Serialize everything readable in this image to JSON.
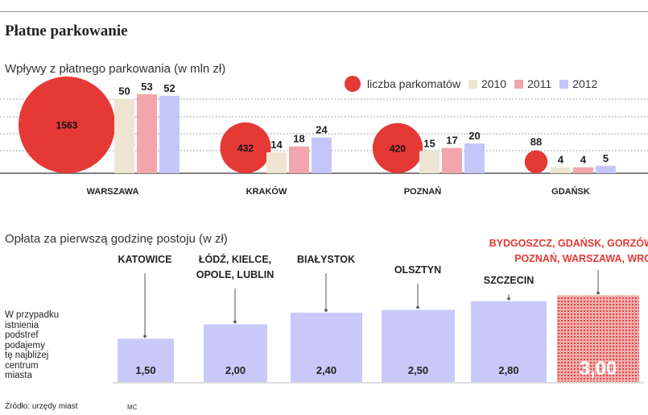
{
  "header": {
    "title": "Płatne parkowanie"
  },
  "revenue": {
    "subtitle": "Wpływy z płatnego parkowania (w mln zł)"
  },
  "fees": {
    "subtitle": "Opłata za pierwszą godzinę postoju (w zł)"
  },
  "legend": {
    "meters": "liczba parkomatów",
    "y2010": "2010",
    "y2011": "2011",
    "y2012": "2012"
  },
  "note": [
    "W przypadku",
    "istnienia",
    "podstref",
    "podajemy",
    "tę najbliżej",
    "centrum",
    "miasta"
  ],
  "footer": {
    "source": "Źródło: urzędy miast",
    "author": "MC"
  },
  "colors": {
    "c2010": "#efe4d1",
    "c2011": "#f2a6ac",
    "c2012": "#c4c6fa",
    "meters": "#e53935",
    "fee": "#c9c9f9",
    "accent": "#e53935"
  },
  "chart_data": [
    {
      "type": "bar",
      "title": "Wpływy z płatnego parkowania (w mln zł)",
      "categories": [
        "WARSZAWA",
        "KRAKÓW",
        "POZNAŃ",
        "GDAŃSK"
      ],
      "series": [
        {
          "name": "2010",
          "values": [
            50,
            14,
            15,
            4
          ]
        },
        {
          "name": "2011",
          "values": [
            53,
            18,
            17,
            4
          ]
        },
        {
          "name": "2012",
          "values": [
            52,
            24,
            20,
            5
          ]
        }
      ],
      "bubbles": {
        "name": "liczba parkomatów",
        "values": [
          1563,
          432,
          420,
          88
        ]
      },
      "ylim": [
        0,
        56
      ]
    },
    {
      "type": "bar",
      "title": "Opłata za pierwszą godzinę postoju (w zł)",
      "categories": [
        "KATOWICE",
        "ŁÓDŹ, KIELCE, OPOLE, LUBLIN",
        "BIAŁYSTOK",
        "OLSZTYN",
        "SZCZECIN",
        "BYDGOSZCZ, GDAŃSK, GORZÓW, KRAKÓW, POZNAŃ, WARSZAWA, WROCŁAW"
      ],
      "category_lines": [
        [
          "KATOWICE"
        ],
        [
          "ŁÓDŹ, KIELCE,",
          "OPOLE, LUBLIN"
        ],
        [
          "BIAŁYSTOK"
        ],
        [
          "OLSZTYN"
        ],
        [
          "SZCZECIN"
        ],
        [
          "BYDGOSZCZ, GDAŃSK, GORZÓW, KRAKÓW,",
          "POZNAŃ, WARSZAWA, WROCŁAW"
        ]
      ],
      "values": [
        1.5,
        2.0,
        2.4,
        2.5,
        2.8,
        3.0
      ],
      "value_labels": [
        "1,50",
        "2,00",
        "2,40",
        "2,50",
        "2,80",
        "3,00"
      ],
      "ylim": [
        0,
        3.3
      ]
    }
  ]
}
